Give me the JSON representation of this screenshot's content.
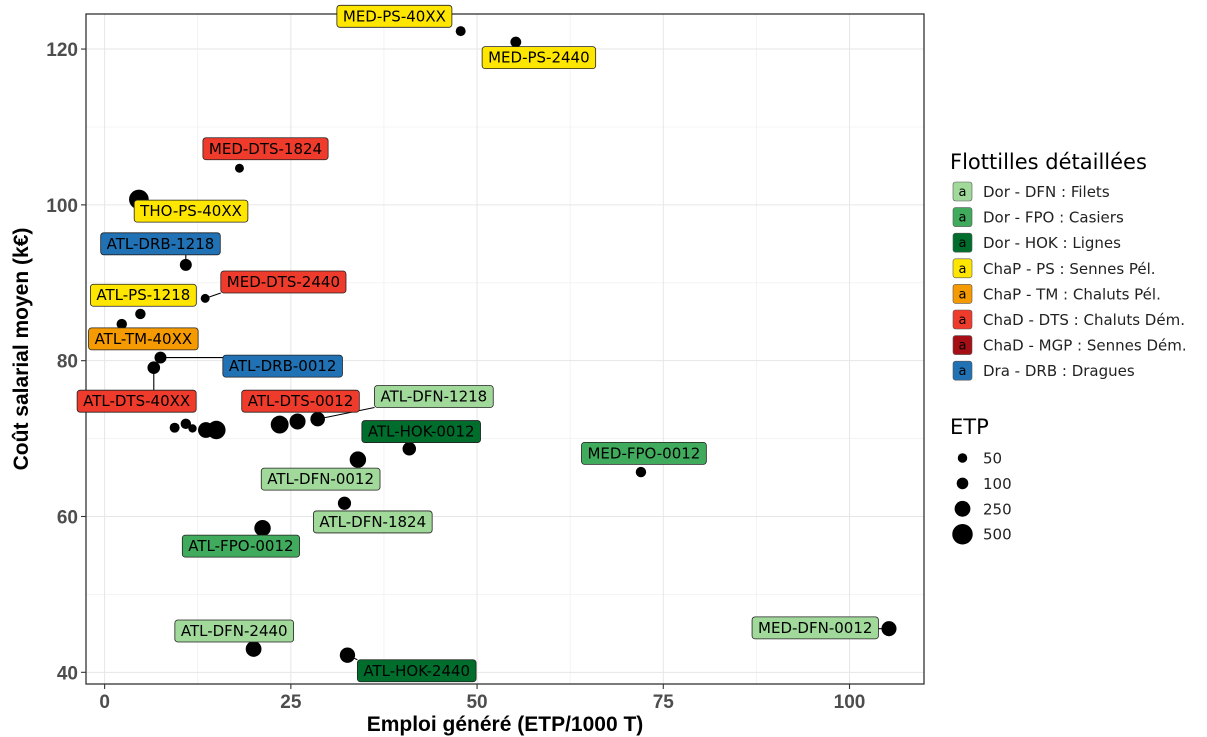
{
  "chart_data": {
    "type": "scatter",
    "xlabel": "Emploi généré (ETP/1000 T)",
    "ylabel": "Coût salarial moyen (k€)",
    "xlim": [
      -2.5,
      110
    ],
    "ylim": [
      38.5,
      124.5
    ],
    "x_ticks": [
      0,
      25,
      50,
      75,
      100
    ],
    "y_ticks": [
      40,
      60,
      80,
      100,
      120
    ],
    "grid": true,
    "legend_position": "right",
    "color_legend": {
      "title": "Flottilles détaillées",
      "key_glyph": "a",
      "items": [
        {
          "label": "Dor - DFN : Filets",
          "color": "#a1d99b"
        },
        {
          "label": "Dor - FPO : Casiers",
          "color": "#41ab5d"
        },
        {
          "label": "Dor - HOK : Lignes",
          "color": "#006d2c"
        },
        {
          "label": "ChaP - PS : Sennes Pél.",
          "color": "#ffe600"
        },
        {
          "label": "ChaP - TM : Chaluts Pél.",
          "color": "#f59a00"
        },
        {
          "label": "ChaD - DTS : Chaluts Dém.",
          "color": "#ef3b2c"
        },
        {
          "label": "ChaD - MGP : Sennes Dém.",
          "color": "#a50f15"
        },
        {
          "label": "Dra - DRB : Dragues",
          "color": "#2171b5"
        }
      ]
    },
    "size_legend": {
      "title": "ETP",
      "items": [
        {
          "label": "50",
          "value": 50
        },
        {
          "label": "100",
          "value": 100
        },
        {
          "label": "250",
          "value": 250
        },
        {
          "label": "500",
          "value": 500
        }
      ]
    },
    "points": [
      {
        "x": 47.8,
        "y": 122.3,
        "size": 60
      },
      {
        "x": 55.2,
        "y": 120.9,
        "size": 80
      },
      {
        "x": 18.1,
        "y": 104.7,
        "size": 40
      },
      {
        "x": 4.6,
        "y": 100.7,
        "size": 450
      },
      {
        "x": 10.9,
        "y": 92.3,
        "size": 110
      },
      {
        "x": 13.5,
        "y": 88.0,
        "size": 40
      },
      {
        "x": 4.8,
        "y": 86.0,
        "size": 70
      },
      {
        "x": 2.3,
        "y": 84.7,
        "size": 70
      },
      {
        "x": 7.5,
        "y": 80.4,
        "size": 110
      },
      {
        "x": 6.6,
        "y": 79.1,
        "size": 130
      },
      {
        "x": 9.4,
        "y": 71.4,
        "size": 60
      },
      {
        "x": 10.9,
        "y": 71.9,
        "size": 70
      },
      {
        "x": 11.8,
        "y": 71.3,
        "size": 30
      },
      {
        "x": 13.6,
        "y": 71.1,
        "size": 250
      },
      {
        "x": 15.0,
        "y": 71.1,
        "size": 380
      },
      {
        "x": 23.5,
        "y": 71.8,
        "size": 350
      },
      {
        "x": 25.9,
        "y": 72.2,
        "size": 260
      },
      {
        "x": 28.6,
        "y": 72.5,
        "size": 200
      },
      {
        "x": 34.0,
        "y": 67.3,
        "size": 280
      },
      {
        "x": 40.9,
        "y": 68.7,
        "size": 160
      },
      {
        "x": 72.0,
        "y": 65.7,
        "size": 70
      },
      {
        "x": 32.2,
        "y": 61.7,
        "size": 150
      },
      {
        "x": 21.2,
        "y": 58.5,
        "size": 280
      },
      {
        "x": 20.0,
        "y": 43.0,
        "size": 250
      },
      {
        "x": 32.6,
        "y": 42.2,
        "size": 230
      },
      {
        "x": 105.3,
        "y": 45.6,
        "size": 220
      }
    ],
    "labels": [
      {
        "text": "MED-PS-40XX",
        "x": 38.9,
        "y": 124.2,
        "color": "#ffe600",
        "text_color": "#000000",
        "point": [
          47.8,
          122.3
        ]
      },
      {
        "text": "MED-PS-2440",
        "x": 58.3,
        "y": 118.9,
        "color": "#ffe600",
        "text_color": "#000000",
        "point": [
          55.2,
          120.9
        ]
      },
      {
        "text": "MED-DTS-1824",
        "x": 21.6,
        "y": 107.2,
        "color": "#ef3b2c",
        "text_color": "#000000",
        "point": [
          18.1,
          104.7
        ]
      },
      {
        "text": "THO-PS-40XX",
        "x": 11.6,
        "y": 99.2,
        "color": "#ffe600",
        "text_color": "#000000",
        "point": [
          4.6,
          100.7
        ]
      },
      {
        "text": "ATL-DRB-1218",
        "x": 7.5,
        "y": 95.0,
        "color": "#2171b5",
        "text_color": "#000000",
        "point": [
          10.9,
          92.3
        ]
      },
      {
        "text": "MED-DTS-2440",
        "x": 24.0,
        "y": 90.1,
        "color": "#ef3b2c",
        "text_color": "#000000",
        "point": [
          13.5,
          88.0
        ]
      },
      {
        "text": "ATL-PS-1218",
        "x": 5.2,
        "y": 88.4,
        "color": "#ffe600",
        "text_color": "#000000",
        "point": [
          4.8,
          86.0
        ]
      },
      {
        "text": "ATL-TM-40XX",
        "x": 5.2,
        "y": 82.8,
        "color": "#f59a00",
        "text_color": "#000000",
        "point": [
          2.3,
          84.7
        ]
      },
      {
        "text": "ATL-DRB-0012",
        "x": 23.9,
        "y": 79.3,
        "color": "#2171b5",
        "text_color": "#000000",
        "point": [
          7.5,
          80.4
        ]
      },
      {
        "text": "ATL-DTS-40XX",
        "x": 4.3,
        "y": 74.8,
        "color": "#ef3b2c",
        "text_color": "#000000",
        "point": [
          6.6,
          79.1
        ]
      },
      {
        "text": "ATL-DTS-0012",
        "x": 26.3,
        "y": 74.8,
        "color": "#ef3b2c",
        "text_color": "#000000",
        "point": [
          25.9,
          72.2
        ]
      },
      {
        "text": "ATL-DFN-1218",
        "x": 44.2,
        "y": 75.4,
        "color": "#a1d99b",
        "text_color": "#000000",
        "point": [
          28.6,
          72.5
        ]
      },
      {
        "text": "ATL-HOK-0012",
        "x": 42.5,
        "y": 70.9,
        "color": "#006d2c",
        "text_color": "#000000",
        "point": [
          40.9,
          68.7
        ]
      },
      {
        "text": "MED-FPO-0012",
        "x": 72.4,
        "y": 68.1,
        "color": "#41ab5d",
        "text_color": "#000000",
        "point": [
          72.0,
          65.7
        ]
      },
      {
        "text": "ATL-DFN-0012",
        "x": 29.0,
        "y": 64.8,
        "color": "#a1d99b",
        "text_color": "#000000",
        "point": [
          34.0,
          67.3
        ]
      },
      {
        "text": "ATL-DFN-1824",
        "x": 36.0,
        "y": 59.3,
        "color": "#a1d99b",
        "text_color": "#000000",
        "point": [
          32.2,
          61.7
        ]
      },
      {
        "text": "ATL-FPO-0012",
        "x": 18.3,
        "y": 56.2,
        "color": "#41ab5d",
        "text_color": "#000000",
        "point": [
          21.2,
          58.5
        ]
      },
      {
        "text": "ATL-DFN-2440",
        "x": 17.4,
        "y": 45.3,
        "color": "#a1d99b",
        "text_color": "#000000",
        "point": [
          20.0,
          43.0
        ]
      },
      {
        "text": "ATL-HOK-2440",
        "x": 41.9,
        "y": 40.2,
        "color": "#006d2c",
        "text_color": "#000000",
        "point": [
          32.6,
          42.2
        ]
      },
      {
        "text": "MED-DFN-0012",
        "x": 95.4,
        "y": 45.7,
        "color": "#a1d99b",
        "text_color": "#000000",
        "point": [
          105.3,
          45.6
        ]
      }
    ]
  }
}
